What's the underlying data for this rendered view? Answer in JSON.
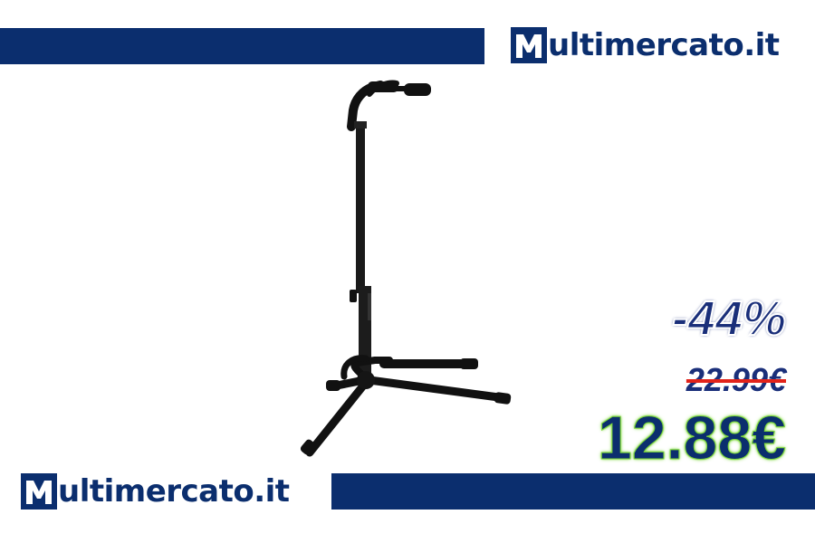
{
  "brand": {
    "name": "Multimercato.it",
    "logo_letter": "M",
    "logo_rest": "ultimercato.it",
    "color_primary": "#0b2e6e"
  },
  "product": {
    "image_icon": "guitar-stand-icon"
  },
  "pricing": {
    "discount": "-44%",
    "old_price": "22.99€",
    "new_price": "12.88€",
    "discount_color": "#1a2f7a",
    "old_price_color": "#1a2f7a",
    "strike_color": "#e2231a",
    "new_price_color": "#0b2e6e",
    "new_price_glow": "#7cd63a"
  }
}
